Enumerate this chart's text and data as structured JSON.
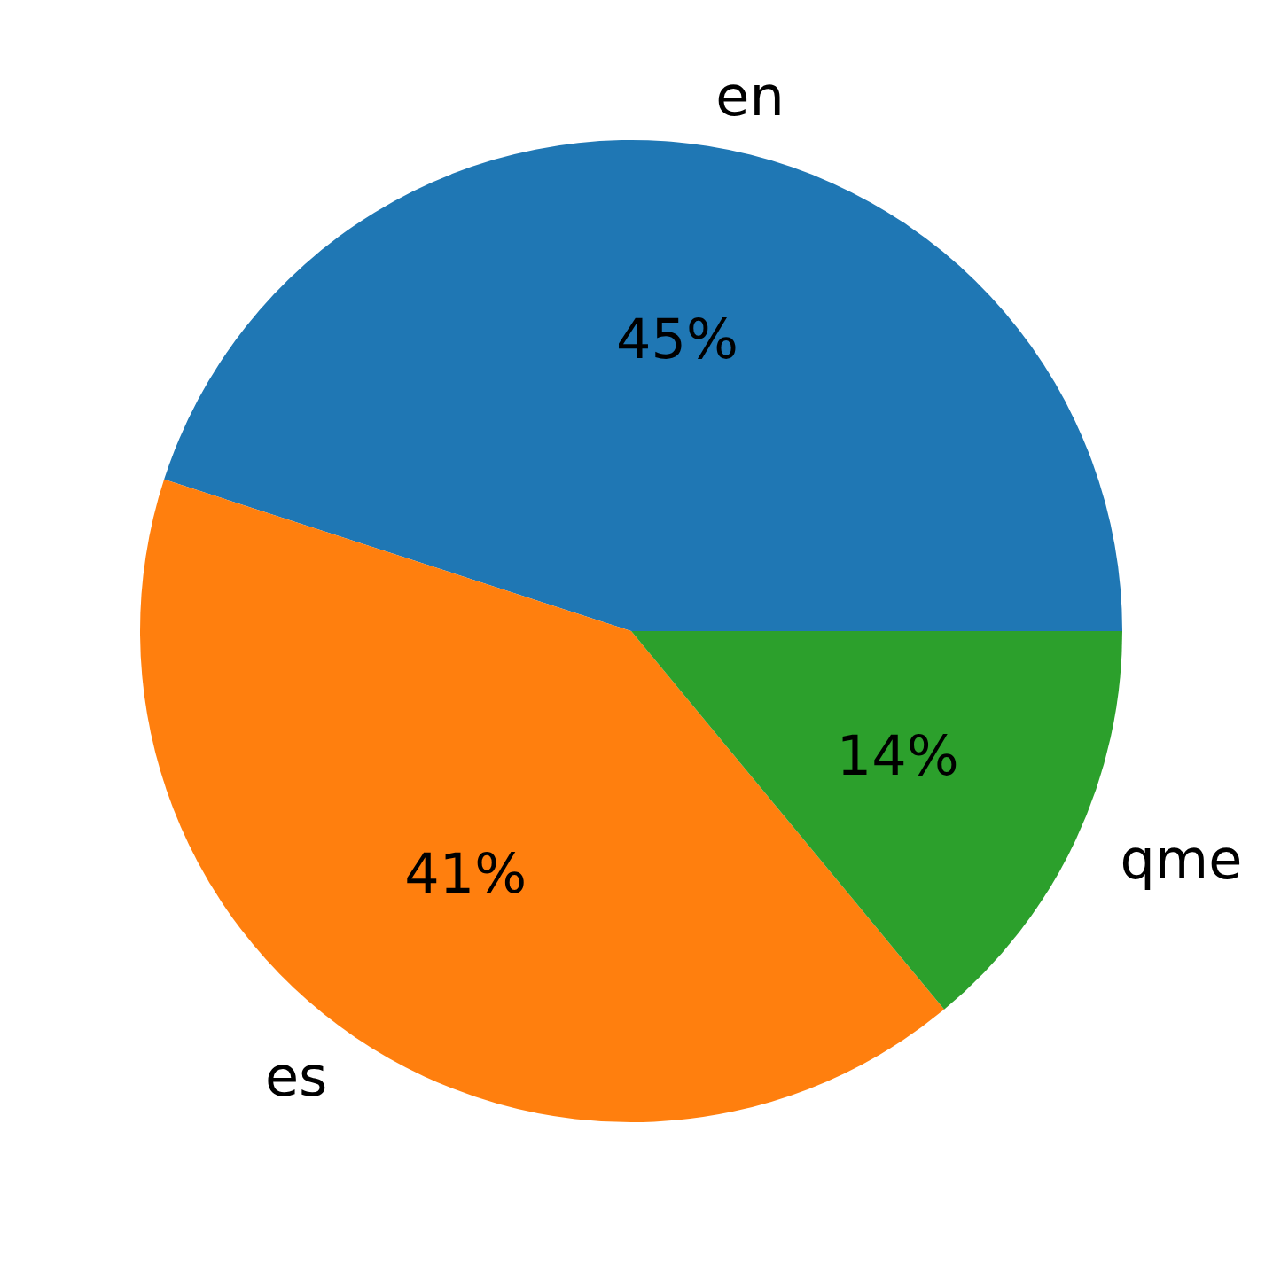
{
  "chart_data": {
    "type": "pie",
    "categories": [
      "en",
      "es",
      "qme"
    ],
    "values": [
      45,
      41,
      14
    ],
    "colors": [
      "#1f77b4",
      "#ff7f0e",
      "#2ca02c"
    ],
    "value_labels": [
      "45%",
      "41%",
      "14%"
    ]
  }
}
